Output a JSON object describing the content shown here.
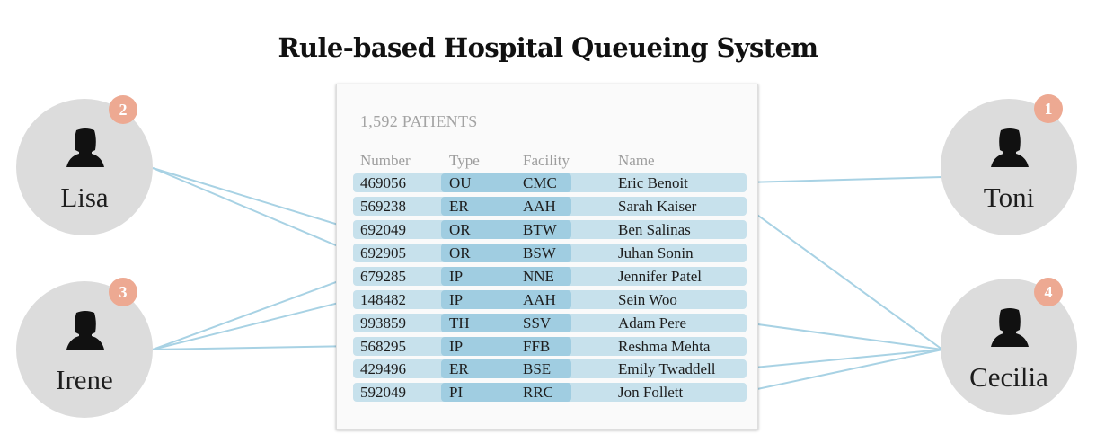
{
  "title": "Rule-based Hospital Queueing System",
  "patient_count": "1,592 PATIENTS",
  "columns": {
    "number": "Number",
    "type": "Type",
    "facility": "Facility",
    "name": "Name"
  },
  "rows": [
    {
      "number": "469056",
      "type": "OU",
      "facility": "CMC",
      "name": "Eric Benoit"
    },
    {
      "number": "569238",
      "type": "ER",
      "facility": "AAH",
      "name": "Sarah Kaiser"
    },
    {
      "number": "692049",
      "type": "OR",
      "facility": "BTW",
      "name": "Ben Salinas"
    },
    {
      "number": "692905",
      "type": "OR",
      "facility": "BSW",
      "name": "Juhan Sonin"
    },
    {
      "number": "679285",
      "type": "IP",
      "facility": "NNE",
      "name": "Jennifer Patel"
    },
    {
      "number": "148482",
      "type": "IP",
      "facility": "AAH",
      "name": "Sein Woo"
    },
    {
      "number": "993859",
      "type": "TH",
      "facility": "SSV",
      "name": "Adam Pere"
    },
    {
      "number": "568295",
      "type": "IP",
      "facility": "FFB",
      "name": "Reshma Mehta"
    },
    {
      "number": "429496",
      "type": "ER",
      "facility": "BSE",
      "name": "Emily Twaddell"
    },
    {
      "number": "592049",
      "type": "PI",
      "facility": "RRC",
      "name": "Jon Follett"
    }
  ],
  "staff": [
    {
      "name": "Lisa",
      "badge": "2",
      "icon": "person-icon"
    },
    {
      "name": "Irene",
      "badge": "3",
      "icon": "person-icon"
    },
    {
      "name": "Toni",
      "badge": "1",
      "icon": "person-icon"
    },
    {
      "name": "Cecilia",
      "badge": "4",
      "icon": "person-icon"
    }
  ],
  "colors": {
    "row": "#c7e1ec",
    "row_highlight": "#a0cde1",
    "connector": "#a8d2e4",
    "avatar": "#dcdcdc",
    "badge": "#eda992"
  }
}
